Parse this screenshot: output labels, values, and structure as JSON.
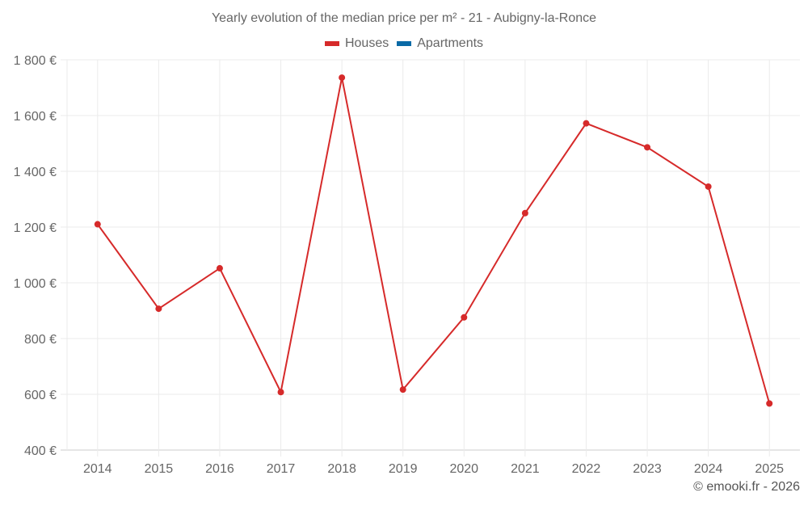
{
  "title": "Yearly evolution of the median price per m² - 21 - Aubigny-la-Ronce",
  "legend": [
    {
      "label": "Houses",
      "color": "#d62a2a"
    },
    {
      "label": "Apartments",
      "color": "#0a6aa6"
    }
  ],
  "credit": "© emooki.fr - 2026",
  "chart_data": {
    "type": "line",
    "title": "Yearly evolution of the median price per m² - 21 - Aubigny-la-Ronce",
    "xlabel": "",
    "ylabel": "",
    "categories": [
      "2014",
      "2015",
      "2016",
      "2017",
      "2018",
      "2019",
      "2020",
      "2021",
      "2022",
      "2023",
      "2024",
      "2025"
    ],
    "series": [
      {
        "name": "Houses",
        "color": "#d62a2a",
        "values": [
          1210,
          907,
          1052,
          608,
          1736,
          617,
          876,
          1250,
          1572,
          1486,
          1345,
          567
        ]
      },
      {
        "name": "Apartments",
        "color": "#0a6aa6",
        "values": []
      }
    ],
    "ylim": [
      400,
      1800
    ],
    "yticks": [
      400,
      600,
      800,
      1000,
      1200,
      1400,
      1600,
      1800
    ],
    "ytick_labels": [
      "400 €",
      "600 €",
      "800 €",
      "1 000 €",
      "1 200 €",
      "1 400 €",
      "1 600 €",
      "1 800 €"
    ],
    "grid": true,
    "legend_position": "top"
  }
}
